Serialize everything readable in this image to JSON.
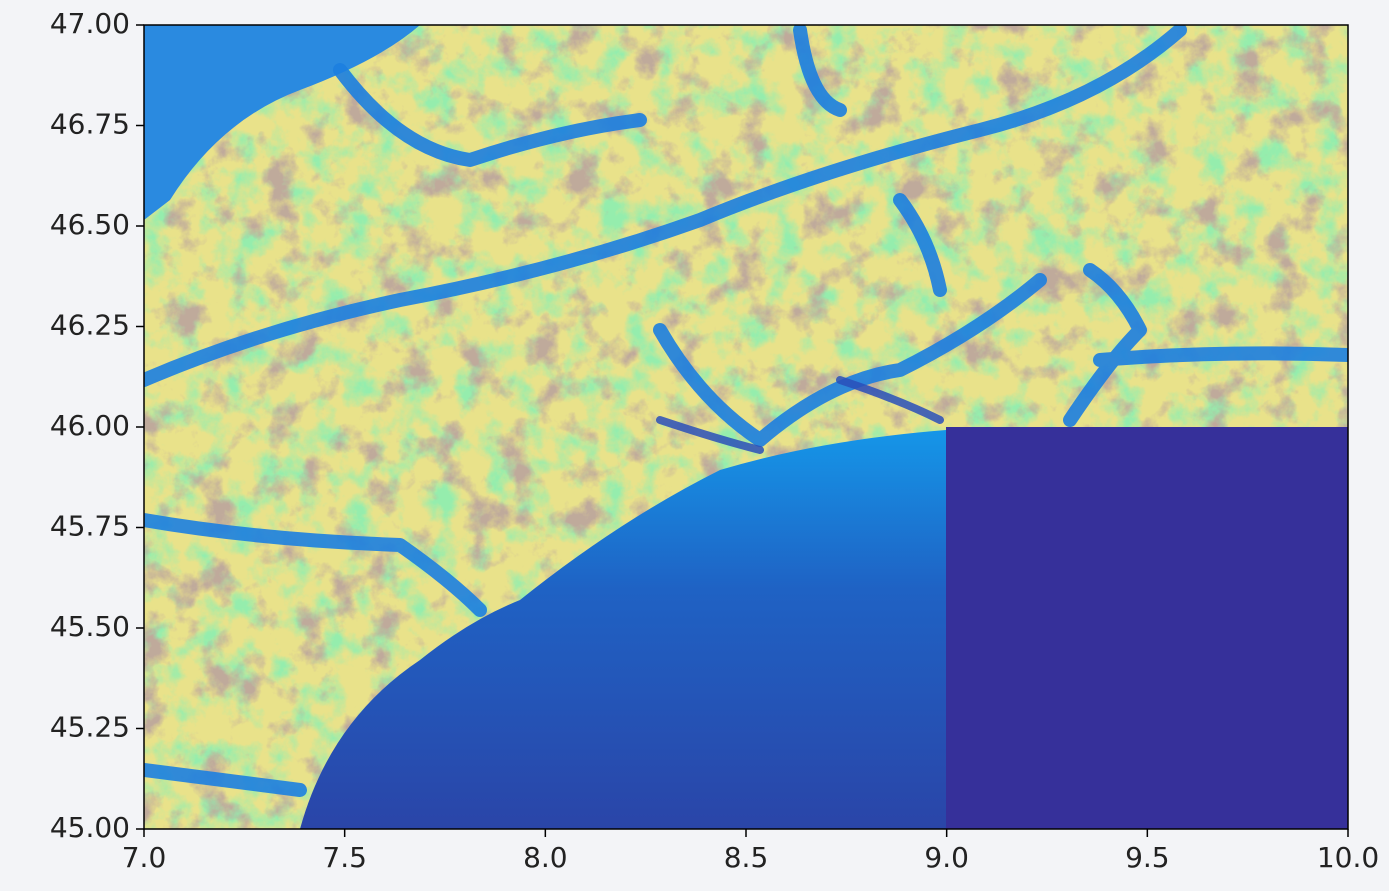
{
  "chart_data": {
    "type": "image",
    "xlim": [
      7,
      10
    ],
    "ylim": [
      45,
      47
    ],
    "xticks": [
      {
        "value": 7,
        "label": "7.0"
      },
      7.5,
      {
        "value": 8,
        "label": "8.0"
      },
      8.5,
      {
        "value": 9,
        "label": "9.0"
      },
      9.5,
      {
        "value": 10,
        "label": "10.0"
      }
    ],
    "yticks": [
      {
        "value": 45,
        "label": "45.00"
      },
      45.25,
      {
        "value": 45.5,
        "label": "45.50"
      },
      45.75,
      {
        "value": 46,
        "label": "46.00"
      },
      46.25,
      {
        "value": 46.5,
        "label": "46.50"
      },
      46.75,
      {
        "value": 47,
        "label": "47.00"
      }
    ]
  }
}
